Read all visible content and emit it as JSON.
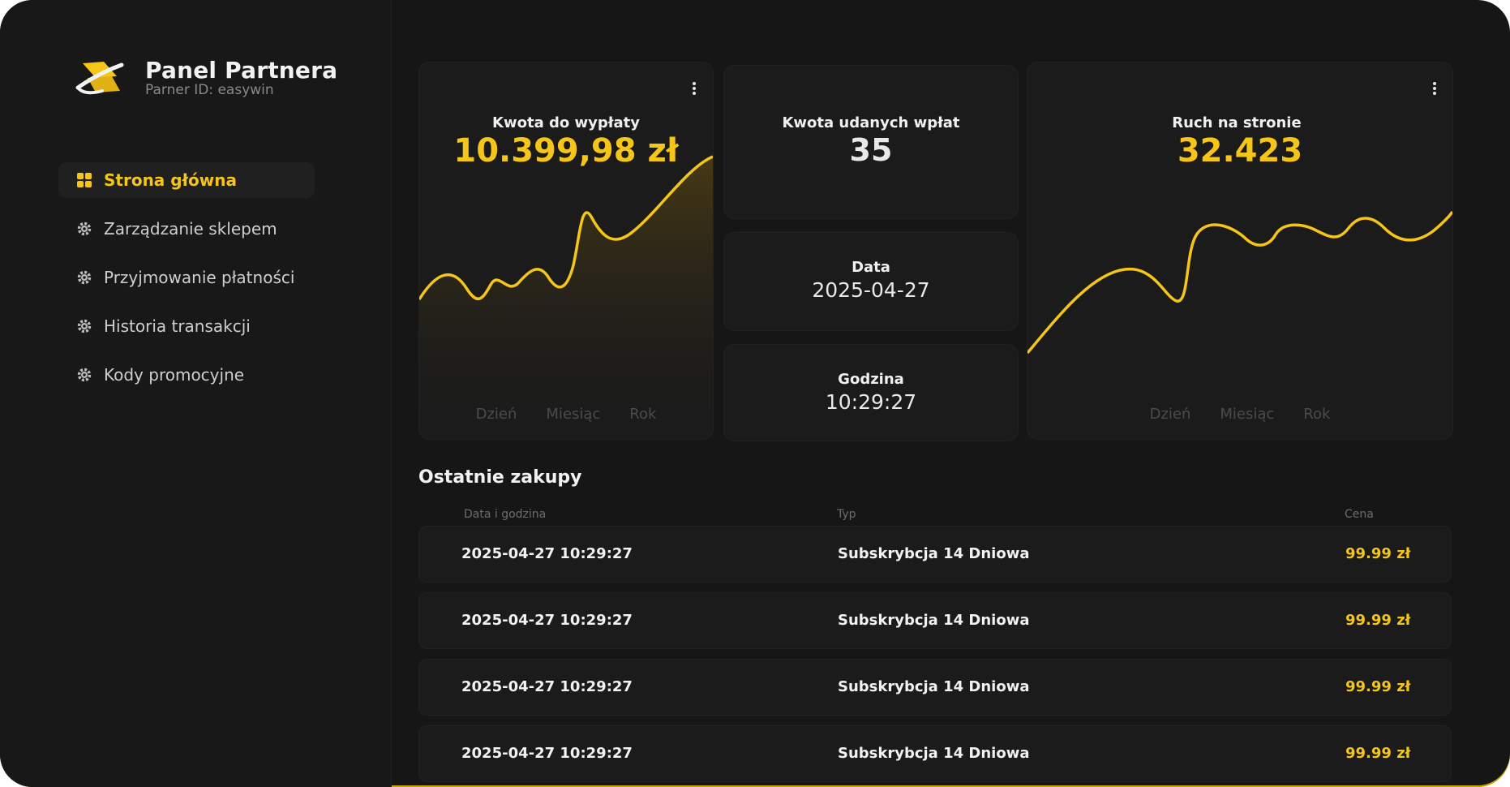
{
  "brand": {
    "title": "Panel Partnera",
    "subtitle": "Parner ID: easywin",
    "accent": "#f5c518"
  },
  "sidebar": {
    "items": [
      {
        "label": "Strona główna",
        "icon": "grid-icon",
        "active": true
      },
      {
        "label": "Zarządzanie sklepem",
        "icon": "gear-icon",
        "active": false
      },
      {
        "label": "Przyjmowanie płatności",
        "icon": "gear-icon",
        "active": false
      },
      {
        "label": "Historia transakcji",
        "icon": "gear-icon",
        "active": false
      },
      {
        "label": "Kody promocyjne",
        "icon": "gear-icon",
        "active": false
      }
    ]
  },
  "cards": {
    "payout": {
      "title": "Kwota do wypłaty",
      "value": "10.399,98 zł",
      "tabs": [
        "Dzień",
        "Miesiąc",
        "Rok"
      ]
    },
    "deposits": {
      "title": "Kwota udanych wpłat",
      "value": "35"
    },
    "date": {
      "title": "Data",
      "value": "2025-04-27"
    },
    "time": {
      "title": "Godzina",
      "value": "10:29:27"
    },
    "traffic": {
      "title": "Ruch na stronie",
      "value": "32.423",
      "tabs": [
        "Dzień",
        "Miesiąc",
        "Rok"
      ]
    }
  },
  "purchases": {
    "title": "Ostatnie zakupy",
    "columns": [
      "Data i godzina",
      "Typ",
      "Cena"
    ],
    "rows": [
      {
        "datetime": "2025-04-27 10:29:27",
        "type": "Subskrybcja 14 Dniowa",
        "price": "99.99 zł"
      },
      {
        "datetime": "2025-04-27 10:29:27",
        "type": "Subskrybcja 14 Dniowa",
        "price": "99.99 zł"
      },
      {
        "datetime": "2025-04-27 10:29:27",
        "type": "Subskrybcja 14 Dniowa",
        "price": "99.99 zł"
      },
      {
        "datetime": "2025-04-27 10:29:27",
        "type": "Subskrybcja 14 Dniowa",
        "price": "99.99 zł"
      }
    ]
  }
}
